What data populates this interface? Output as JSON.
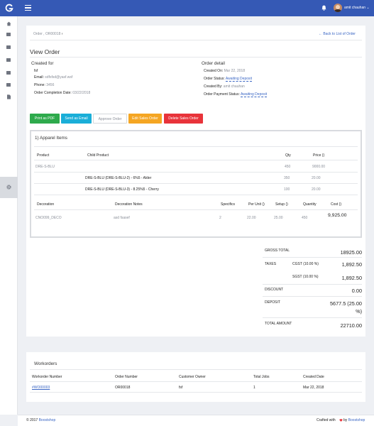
{
  "user": {
    "name": "amit chauhan"
  },
  "breadcrumb": {
    "text": "Order , OR00018"
  },
  "back_link": "← Back to List of Order",
  "page_title": "View Order",
  "created_for": {
    "heading": "Created for",
    "name": "fsf",
    "email_label": "Email:",
    "email_value": "sdfsfsd@yasf.wsf",
    "phone_label": "Phone:",
    "phone_value": "3456",
    "completion_label": "Order Completion Date:",
    "completion_value": "03/22/2018"
  },
  "order_detail": {
    "heading": "Order detail",
    "created_on_label": "Created On:",
    "created_on_value": "Mar 22, 2018",
    "status_label": "Order Status:",
    "status_value": "Awaiting Deposit",
    "created_by_label": "Created By:",
    "created_by_value": "amit chauhan",
    "payment_label": "Order Payment Status:",
    "payment_value": "Awaiting Deposit"
  },
  "actions": {
    "print_pdf": "Print as PDF",
    "send_email": "Send as Email",
    "approve": "Approve Order",
    "edit": "Edit Sales Order",
    "delete": "Delete Sales Order"
  },
  "colors": {
    "topbar": "#3559b5",
    "print_btn": "#2eaa4c",
    "email_btn": "#1aaed8",
    "edit_btn": "#f5a623",
    "delete_btn": "#e8333a",
    "link": "#3a66c4",
    "heart": "#e8333a"
  },
  "items": {
    "section_title": "1) Apparel Items",
    "headers": {
      "product": "Product",
      "child": "Child Product",
      "qty": "Qty",
      "price": "Price ()"
    },
    "rows": [
      {
        "product": "DRE-S-BLU",
        "child": "",
        "qty": "450",
        "price": "9000.00"
      },
      {
        "product": "",
        "child": "DRE-S-BLU (DRE-S-BLU-2) - 6%5 - Alder",
        "qty": "350",
        "price": "20.00"
      },
      {
        "product": "",
        "child": "DRE-S-BLU (DRE-S-BLU-3) - 8.25%5 - Cherry",
        "qty": "100",
        "price": "20.00"
      }
    ],
    "deco_headers": {
      "decoration": "Decoration",
      "notes": "Decoration Notes",
      "specifics": "Specifics",
      "per_unit": "Per Unit ()",
      "setup": "Setup ()",
      "quantity": "Quantity",
      "cost": "Cost ()"
    },
    "deco_row": {
      "decoration": "CNO099_DECO",
      "notes": "asd fsasef",
      "specifics": "2",
      "per_unit": "22.00",
      "setup": "25.00",
      "quantity": "450",
      "cost": "9,925.00"
    }
  },
  "totals": {
    "gross_label": "GROSS TOTAL",
    "gross_value": "18925.00",
    "taxes_label": "TAXES",
    "cgst_label": "CGST (10.00 %)",
    "cgst_value": "1,892.50",
    "sgst_label": "SGST (10.00 %)",
    "sgst_value": "1,892.50",
    "discount_label": "DISCOUNT",
    "discount_value": "0.00",
    "deposit_label": "DEPOSIT",
    "deposit_value_line1": "5677.5 (25.00",
    "deposit_value_line2": "%)",
    "total_label": "TOTAL AMOUNT",
    "total_value": "22710.00"
  },
  "workorders": {
    "title": "Workorders",
    "headers": {
      "number": "Workorder Number",
      "order": "Order Number",
      "owner": "Customer Owner",
      "jobs": "Total Jobs",
      "date": "Created Date"
    },
    "rows": [
      {
        "number": "#WO00003",
        "order": "OR00018",
        "owner": "fsf",
        "jobs": "1",
        "date": "Mar 22, 2018"
      }
    ]
  },
  "footer": {
    "copyright_prefix": "© 2017",
    "copyright_brand": "Boostshop",
    "crafted_prefix": "Crafted with",
    "crafted_by": "by",
    "crafted_brand": "Boostshop"
  }
}
